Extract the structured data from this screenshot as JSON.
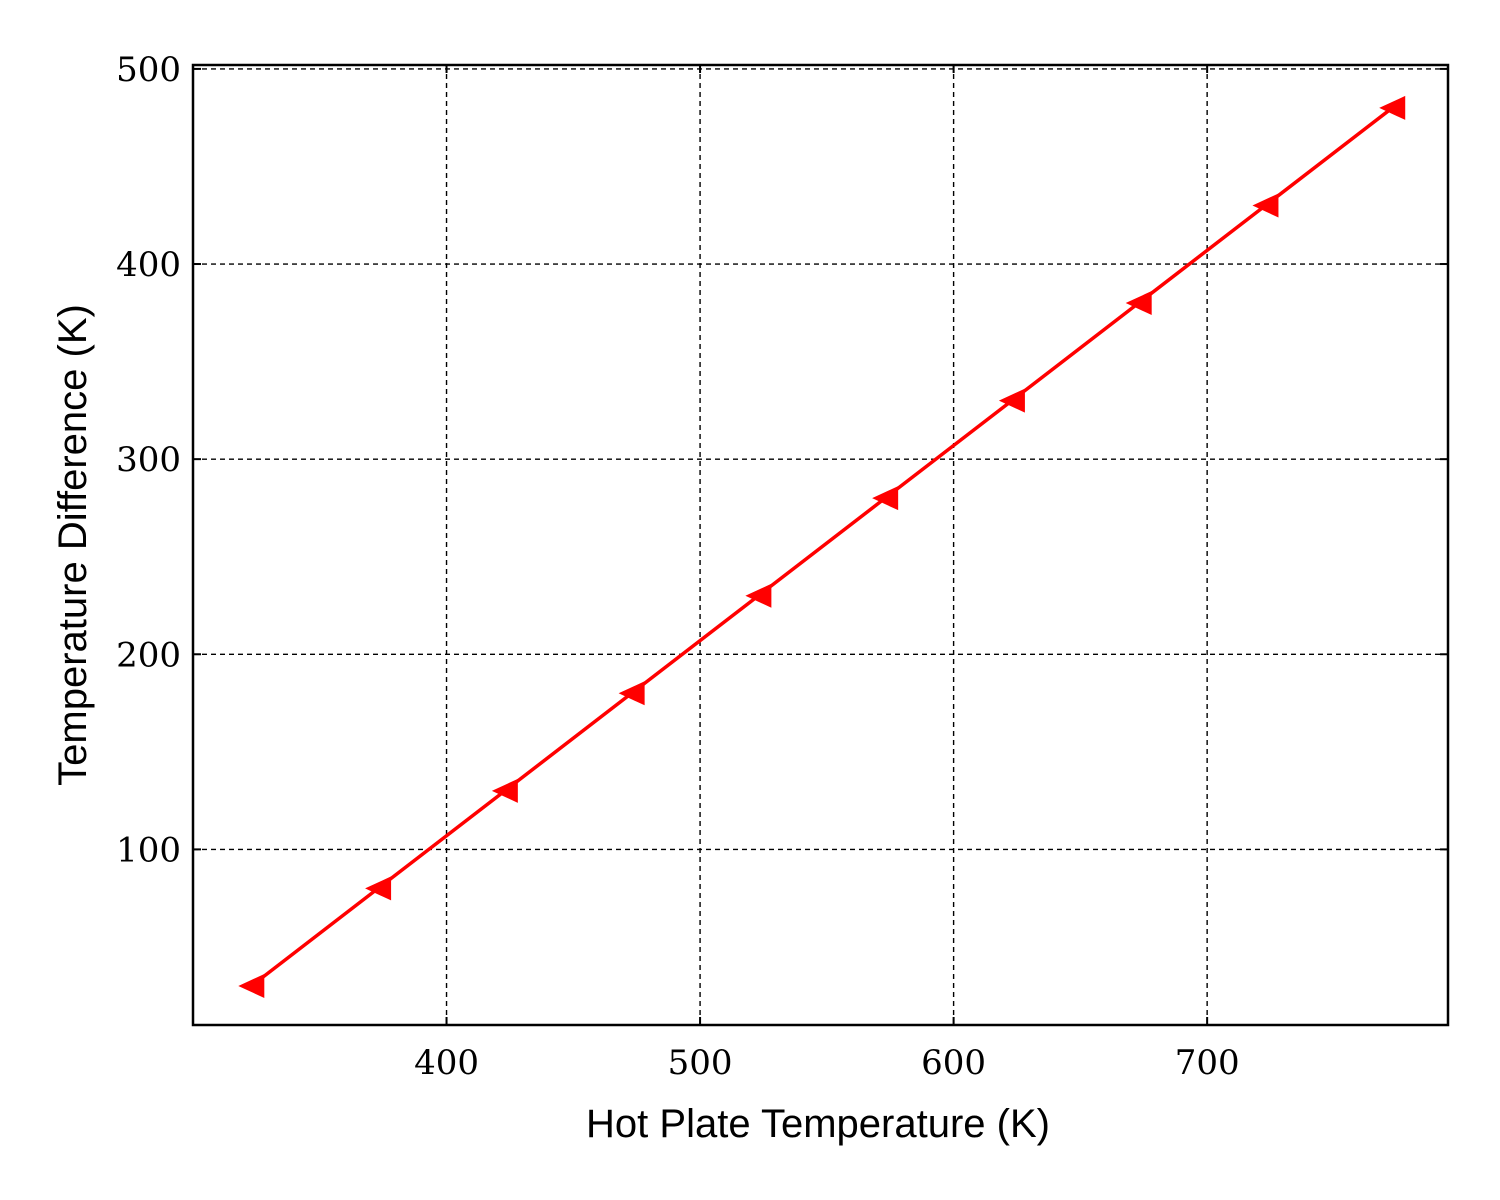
{
  "chart_data": {
    "type": "line",
    "xlabel": "Hot Plate Temperature (K)",
    "ylabel": "Temperature Difference (K)",
    "xlim": [
      300,
      795
    ],
    "ylim": [
      10,
      502
    ],
    "xticks": [
      400,
      500,
      600,
      700
    ],
    "yticks": [
      100,
      200,
      300,
      400,
      500
    ],
    "xtick_labels": [
      "400",
      "500",
      "600",
      "700"
    ],
    "ytick_labels": [
      "100",
      "200",
      "300",
      "400",
      "500"
    ],
    "grid": true,
    "series": [
      {
        "color": "#ff0000",
        "marker": "triangle-left",
        "x": [
          323,
          373,
          423,
          473,
          523,
          573,
          623,
          673,
          723,
          773
        ],
        "y": [
          30,
          80,
          130,
          180,
          230,
          280,
          330,
          380,
          430,
          480
        ]
      }
    ]
  }
}
